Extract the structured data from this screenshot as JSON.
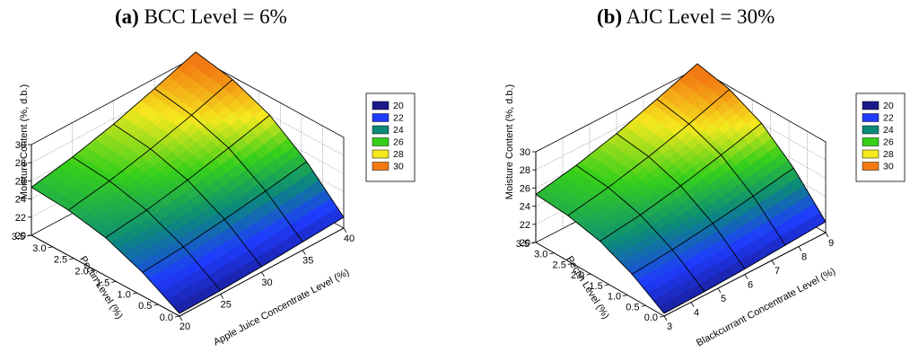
{
  "figure": {
    "colormap": [
      {
        "v": 20,
        "color": "#1a1a8c"
      },
      {
        "v": 22,
        "color": "#1f3cff"
      },
      {
        "v": 24,
        "color": "#0c8a7a"
      },
      {
        "v": 26,
        "color": "#36d01a"
      },
      {
        "v": 28,
        "color": "#f5e81e"
      },
      {
        "v": 30,
        "color": "#f37a12"
      }
    ]
  },
  "chart_data": [
    {
      "type": "surface",
      "panel_letter": "(a)",
      "title_rest": " BCC Level = 6%",
      "title": "(a) BCC Level = 6%",
      "x_label": "Apple Juice Concentrate Level (%)",
      "x_ticks": [
        "20",
        "25",
        "30",
        "35",
        "40"
      ],
      "x_range": [
        20,
        40
      ],
      "y_label": "Pectin Level (%)",
      "y_ticks": [
        "0.0",
        "0.5",
        "1.0",
        "1.5",
        "2.0",
        "2.5",
        "3.0",
        "3.5"
      ],
      "y_range": [
        0,
        3.5
      ],
      "z_label": "Moisture Content (%, d.b.)",
      "z_ticks": [
        "20",
        "22",
        "24",
        "26",
        "28",
        "30"
      ],
      "z_range": [
        20,
        30
      ],
      "legend": [
        "20",
        "22",
        "24",
        "26",
        "28",
        "30"
      ],
      "surface": {
        "x": [
          20,
          25,
          30,
          35,
          40
        ],
        "y": [
          0,
          0.875,
          1.75,
          2.625,
          3.5
        ],
        "z": [
          [
            20.3,
            20.4,
            20.6,
            20.9,
            21.2
          ],
          [
            22.6,
            23.0,
            23.6,
            24.3,
            25.1
          ],
          [
            24.2,
            24.8,
            25.7,
            26.8,
            28.0
          ],
          [
            25.0,
            25.8,
            26.9,
            28.2,
            29.7
          ],
          [
            25.3,
            26.2,
            27.4,
            28.9,
            30.5
          ]
        ]
      }
    },
    {
      "type": "surface",
      "panel_letter": "(b)",
      "title_rest": " AJC Level = 30%",
      "title": "(b) AJC Level = 30%",
      "x_label": "Blackcurrant Concentrate Level (%)",
      "x_ticks": [
        "3",
        "4",
        "5",
        "6",
        "7",
        "8",
        "9"
      ],
      "x_range": [
        3,
        9
      ],
      "y_label": "Pectin Level (%)",
      "y_ticks": [
        "0.0",
        "0.5",
        "1.0",
        "1.5",
        "2.0",
        "2.5",
        "3.0",
        "3.5"
      ],
      "y_range": [
        0,
        3.5
      ],
      "z_label": "Moisture Content (%, d.b.)",
      "z_ticks": [
        "20",
        "22",
        "24",
        "26",
        "28",
        "30"
      ],
      "z_range": [
        20,
        30
      ],
      "legend": [
        "20",
        "22",
        "24",
        "26",
        "28",
        "30"
      ],
      "surface": {
        "x": [
          3,
          4.5,
          6,
          7.5,
          9
        ],
        "y": [
          0,
          0.875,
          1.75,
          2.625,
          3.5
        ],
        "z": [
          [
            20.3,
            20.4,
            20.6,
            20.9,
            21.2
          ],
          [
            22.6,
            23.0,
            23.6,
            24.3,
            25.1
          ],
          [
            24.2,
            24.8,
            25.7,
            26.8,
            28.0
          ],
          [
            25.0,
            25.8,
            26.9,
            28.2,
            29.7
          ],
          [
            25.3,
            26.2,
            27.4,
            28.9,
            30.5
          ]
        ]
      }
    }
  ]
}
